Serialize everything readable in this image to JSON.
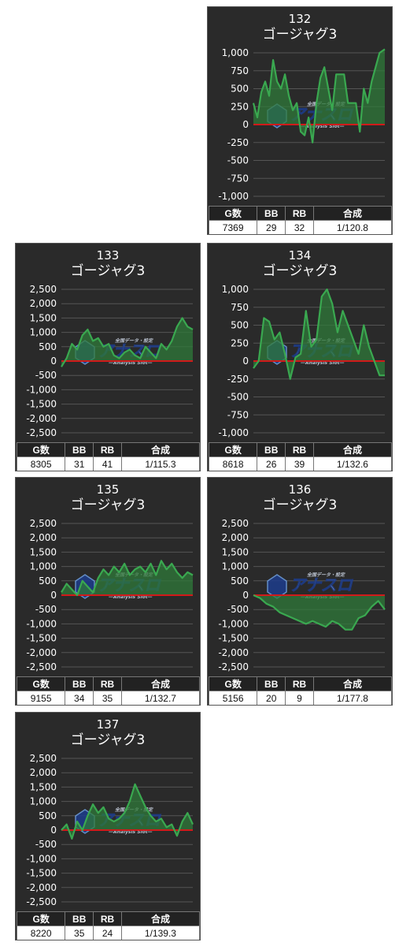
{
  "machine_name": "ゴージャグ3",
  "table_headers": {
    "games": "G数",
    "bb": "BB",
    "rb": "RB",
    "combined": "合成"
  },
  "watermark": {
    "small_text": "全国データ・設定",
    "brand": "アナスロ",
    "sub": "—Analysis Slot—"
  },
  "colors": {
    "card_bg": "#2a2a2a",
    "line": "#3aa850",
    "fill": "#2f7a3a",
    "zero_line": "#d11a1a",
    "grid": "#555555"
  },
  "cards": [
    {
      "number": "132",
      "stats": {
        "games": "7369",
        "bb": "29",
        "rb": "32",
        "combined": "1/120.8"
      },
      "y_labels": [
        "1,000",
        "750",
        "500",
        "250",
        "0",
        "-250",
        "-500",
        "-750",
        "-1,000"
      ]
    },
    {
      "number": "133",
      "stats": {
        "games": "8305",
        "bb": "31",
        "rb": "41",
        "combined": "1/115.3"
      },
      "y_labels": [
        "2,500",
        "2,000",
        "1,500",
        "1,000",
        "500",
        "0",
        "-500",
        "-1,000",
        "-1,500",
        "-2,000",
        "-2,500"
      ]
    },
    {
      "number": "134",
      "stats": {
        "games": "8618",
        "bb": "26",
        "rb": "39",
        "combined": "1/132.6"
      },
      "y_labels": [
        "1,000",
        "750",
        "500",
        "250",
        "0",
        "-250",
        "-500",
        "-750",
        "-1,000"
      ]
    },
    {
      "number": "135",
      "stats": {
        "games": "9155",
        "bb": "34",
        "rb": "35",
        "combined": "1/132.7"
      },
      "y_labels": [
        "2,500",
        "2,000",
        "1,500",
        "1,000",
        "500",
        "0",
        "-500",
        "-1,000",
        "-1,500",
        "-2,000",
        "-2,500"
      ]
    },
    {
      "number": "136",
      "stats": {
        "games": "5156",
        "bb": "20",
        "rb": "9",
        "combined": "1/177.8"
      },
      "y_labels": [
        "2,500",
        "2,000",
        "1,500",
        "1,000",
        "500",
        "0",
        "-500",
        "-1,000",
        "-1,500",
        "-2,000",
        "-2,500"
      ]
    },
    {
      "number": "137",
      "stats": {
        "games": "8220",
        "bb": "35",
        "rb": "24",
        "combined": "1/139.3"
      },
      "y_labels": [
        "2,500",
        "2,000",
        "1,500",
        "1,000",
        "500",
        "0",
        "-500",
        "-1,000",
        "-1,500",
        "-2,000",
        "-2,500"
      ]
    }
  ],
  "chart_data": [
    {
      "type": "area",
      "title": "132",
      "ylim": [
        -1000,
        1000
      ],
      "x": [
        0,
        0.03,
        0.06,
        0.09,
        0.12,
        0.15,
        0.18,
        0.21,
        0.24,
        0.27,
        0.3,
        0.33,
        0.36,
        0.39,
        0.42,
        0.45,
        0.48,
        0.51,
        0.54,
        0.57,
        0.6,
        0.63,
        0.66,
        0.69,
        0.72,
        0.75,
        0.78,
        0.81,
        0.84,
        0.87,
        0.9,
        0.93,
        0.96,
        1.0
      ],
      "y": [
        300,
        100,
        450,
        600,
        400,
        900,
        600,
        500,
        700,
        400,
        200,
        300,
        -100,
        -150,
        100,
        -250,
        300,
        650,
        800,
        500,
        200,
        700,
        700,
        700,
        300,
        300,
        300,
        -100,
        500,
        300,
        600,
        800,
        1000,
        1050
      ]
    },
    {
      "type": "area",
      "title": "133",
      "ylim": [
        -2500,
        2500
      ],
      "x": [
        0,
        0.04,
        0.08,
        0.12,
        0.16,
        0.2,
        0.24,
        0.28,
        0.32,
        0.36,
        0.4,
        0.44,
        0.48,
        0.52,
        0.56,
        0.6,
        0.64,
        0.68,
        0.72,
        0.76,
        0.8,
        0.84,
        0.88,
        0.92,
        0.96,
        1.0
      ],
      "y": [
        -200,
        100,
        600,
        400,
        900,
        1100,
        700,
        800,
        500,
        600,
        200,
        100,
        300,
        400,
        200,
        100,
        500,
        300,
        100,
        600,
        400,
        700,
        1200,
        1500,
        1200,
        1100
      ]
    },
    {
      "type": "area",
      "title": "134",
      "ylim": [
        -1000,
        1000
      ],
      "x": [
        0,
        0.04,
        0.08,
        0.12,
        0.16,
        0.2,
        0.24,
        0.28,
        0.32,
        0.36,
        0.4,
        0.44,
        0.48,
        0.52,
        0.56,
        0.6,
        0.64,
        0.68,
        0.72,
        0.76,
        0.8,
        0.84,
        0.88,
        0.92,
        0.96,
        1.0
      ],
      "y": [
        -100,
        0,
        600,
        550,
        300,
        400,
        100,
        -250,
        50,
        100,
        700,
        200,
        300,
        900,
        1000,
        800,
        400,
        700,
        500,
        300,
        100,
        500,
        200,
        0,
        -200,
        -200
      ]
    },
    {
      "type": "area",
      "title": "135",
      "ylim": [
        -2500,
        2500
      ],
      "x": [
        0,
        0.04,
        0.08,
        0.12,
        0.16,
        0.2,
        0.24,
        0.28,
        0.32,
        0.36,
        0.4,
        0.44,
        0.48,
        0.52,
        0.56,
        0.6,
        0.64,
        0.68,
        0.72,
        0.76,
        0.8,
        0.84,
        0.88,
        0.92,
        0.96,
        1.0
      ],
      "y": [
        100,
        400,
        200,
        0,
        500,
        300,
        100,
        600,
        900,
        700,
        1000,
        800,
        1100,
        700,
        900,
        1000,
        800,
        1100,
        700,
        1200,
        900,
        1100,
        800,
        600,
        800,
        700
      ]
    },
    {
      "type": "area",
      "title": "136",
      "ylim": [
        -2500,
        2500
      ],
      "x": [
        0,
        0.05,
        0.1,
        0.15,
        0.2,
        0.25,
        0.3,
        0.35,
        0.4,
        0.45,
        0.5,
        0.55,
        0.6,
        0.65,
        0.7,
        0.75,
        0.8,
        0.85,
        0.9,
        0.95,
        1.0
      ],
      "y": [
        0,
        -100,
        -300,
        -400,
        -600,
        -700,
        -800,
        -900,
        -1000,
        -900,
        -1000,
        -1100,
        -900,
        -1000,
        -1200,
        -1200,
        -800,
        -700,
        -400,
        -200,
        -500
      ]
    },
    {
      "type": "area",
      "title": "137",
      "ylim": [
        -2500,
        2500
      ],
      "x": [
        0,
        0.04,
        0.08,
        0.12,
        0.16,
        0.2,
        0.24,
        0.28,
        0.32,
        0.36,
        0.4,
        0.44,
        0.48,
        0.52,
        0.56,
        0.6,
        0.64,
        0.68,
        0.72,
        0.76,
        0.8,
        0.84,
        0.88,
        0.92,
        0.96,
        1.0
      ],
      "y": [
        0,
        200,
        -300,
        300,
        0,
        500,
        900,
        600,
        800,
        400,
        300,
        400,
        600,
        1000,
        1600,
        1200,
        800,
        500,
        300,
        400,
        100,
        200,
        -200,
        300,
        600,
        200
      ]
    }
  ]
}
